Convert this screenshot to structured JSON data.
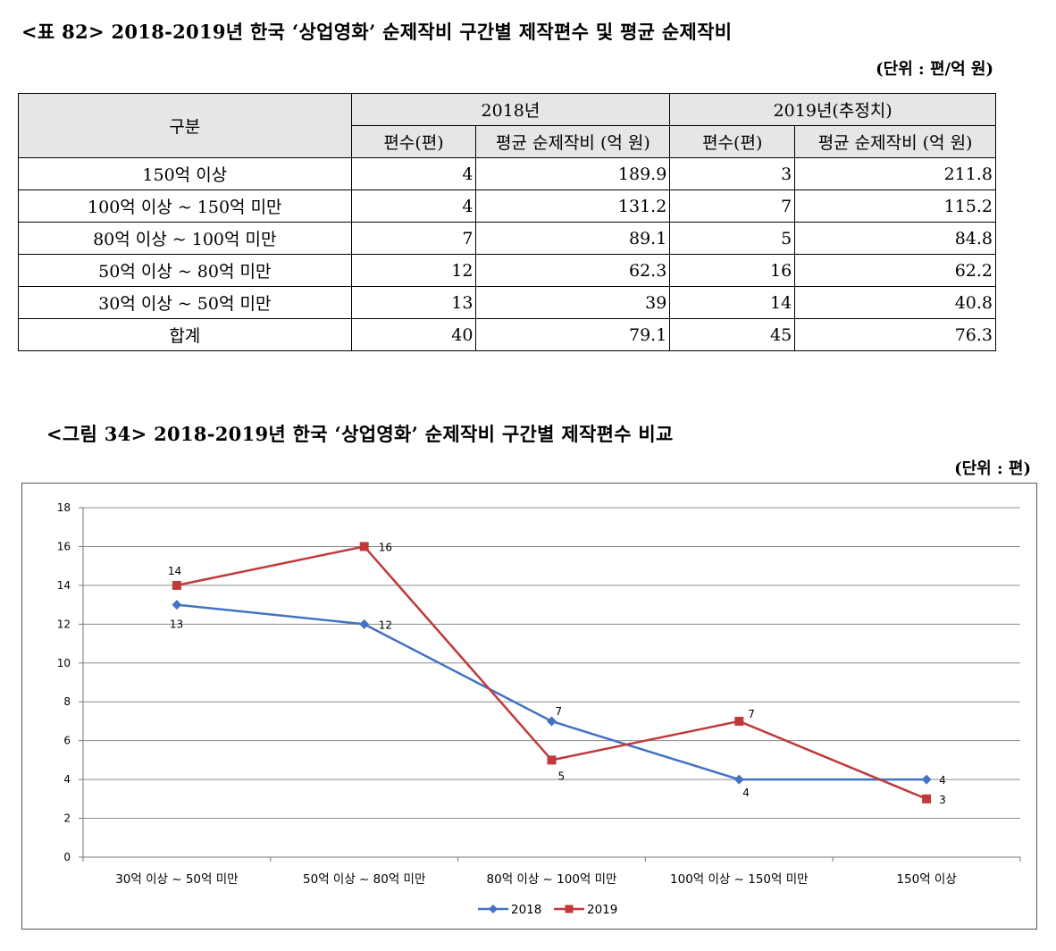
{
  "table": {
    "title": "<표 82> 2018-2019년 한국 ‘상업영화’ 순제작비 구간별 제작편수 및 평균 순제작비",
    "unit": "(단위 : 편/억 원)",
    "header": {
      "category": "구분",
      "year1": "2018년",
      "year2": "2019년(추정치)",
      "count": "편수(편)",
      "avg": "평균 순제작비 (억 원)"
    },
    "rows": [
      {
        "label": "150억 이상",
        "c2018": "4",
        "a2018": "189.9",
        "c2019": "3",
        "a2019": "211.8"
      },
      {
        "label": "100억 이상 ~ 150억 미만",
        "c2018": "4",
        "a2018": "131.2",
        "c2019": "7",
        "a2019": "115.2"
      },
      {
        "label": "80억 이상 ~ 100억 미만",
        "c2018": "7",
        "a2018": "89.1",
        "c2019": "5",
        "a2019": "84.8"
      },
      {
        "label": "50억 이상 ~ 80억 미만",
        "c2018": "12",
        "a2018": "62.3",
        "c2019": "16",
        "a2019": "62.2"
      },
      {
        "label": "30억 이상 ~ 50억 미만",
        "c2018": "13",
        "a2018": "39",
        "c2019": "14",
        "a2019": "40.8"
      },
      {
        "label": "합계",
        "c2018": "40",
        "a2018": "79.1",
        "c2019": "45",
        "a2019": "76.3"
      }
    ]
  },
  "figure": {
    "title": "<그림 34> 2018-2019년 한국 ‘상업영화’ 순제작비 구간별 제작편수 비교",
    "unit": "(단위 : 편)"
  },
  "chart_data": {
    "type": "line",
    "categories": [
      "30억 이상 ~ 50억 미만",
      "50억 이상 ~ 80억 미만",
      "80억 이상 ~ 100억 미만",
      "100억 이상 ~ 150억 미만",
      "150억 이상"
    ],
    "series": [
      {
        "name": "2018",
        "values": [
          13,
          12,
          7,
          4,
          4
        ],
        "color": "#4472c4",
        "marker": "diamond"
      },
      {
        "name": "2019",
        "values": [
          14,
          16,
          5,
          7,
          3
        ],
        "color": "#c0393b",
        "marker": "square"
      }
    ],
    "ylim": [
      0,
      18
    ],
    "yticks": [
      "0",
      "2",
      "4",
      "6",
      "8",
      "10",
      "12",
      "14",
      "16",
      "18"
    ],
    "grid": true,
    "legend": "bottom",
    "data_labels": true
  }
}
